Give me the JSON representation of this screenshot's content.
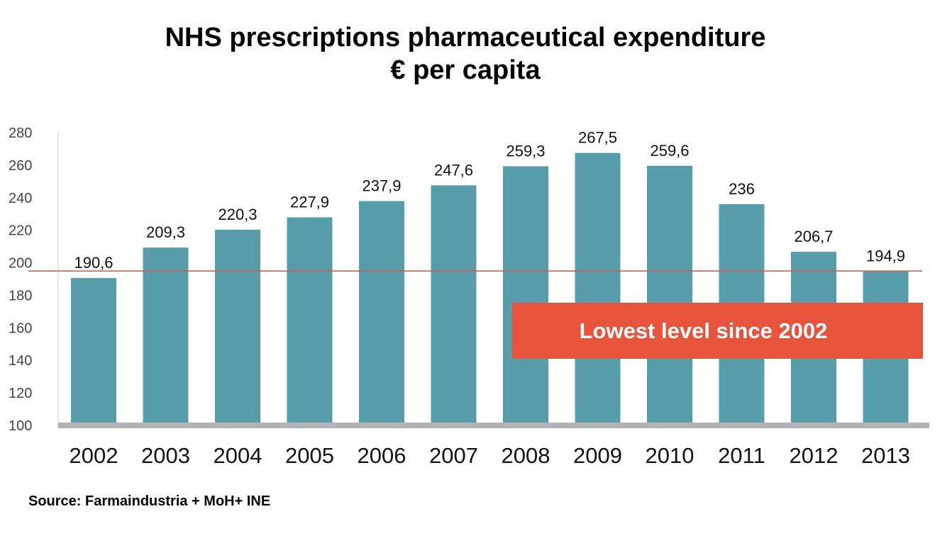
{
  "title_line1": "NHS prescriptions pharmaceutical expenditure",
  "title_line2": "€ per capita",
  "source": "Source: Farmaindustria + MoH+ INE",
  "callout": "Lowest level since 2002",
  "colors": {
    "bar": "#589dac",
    "reference_line": "#e8533c",
    "callout": "#e8533c",
    "axis": "#b3b3b3"
  },
  "chart_data": {
    "type": "bar",
    "categories": [
      "2002",
      "2003",
      "2004",
      "2005",
      "2006",
      "2007",
      "2008",
      "2009",
      "2010",
      "2011",
      "2012",
      "2013"
    ],
    "values": [
      190.6,
      209.3,
      220.3,
      227.9,
      237.9,
      247.6,
      259.3,
      267.5,
      259.6,
      236,
      206.7,
      194.9
    ],
    "data_labels": [
      "190,6",
      "209,3",
      "220,3",
      "227,9",
      "237,9",
      "247,6",
      "259,3",
      "267,5",
      "259,6",
      "236",
      "206,7",
      "194,9"
    ],
    "ylim": [
      100,
      280
    ],
    "yticks": [
      100,
      120,
      140,
      160,
      180,
      200,
      220,
      240,
      260,
      280
    ],
    "reference_line": 194.9,
    "grid": false,
    "xlabel": "",
    "ylabel": ""
  }
}
